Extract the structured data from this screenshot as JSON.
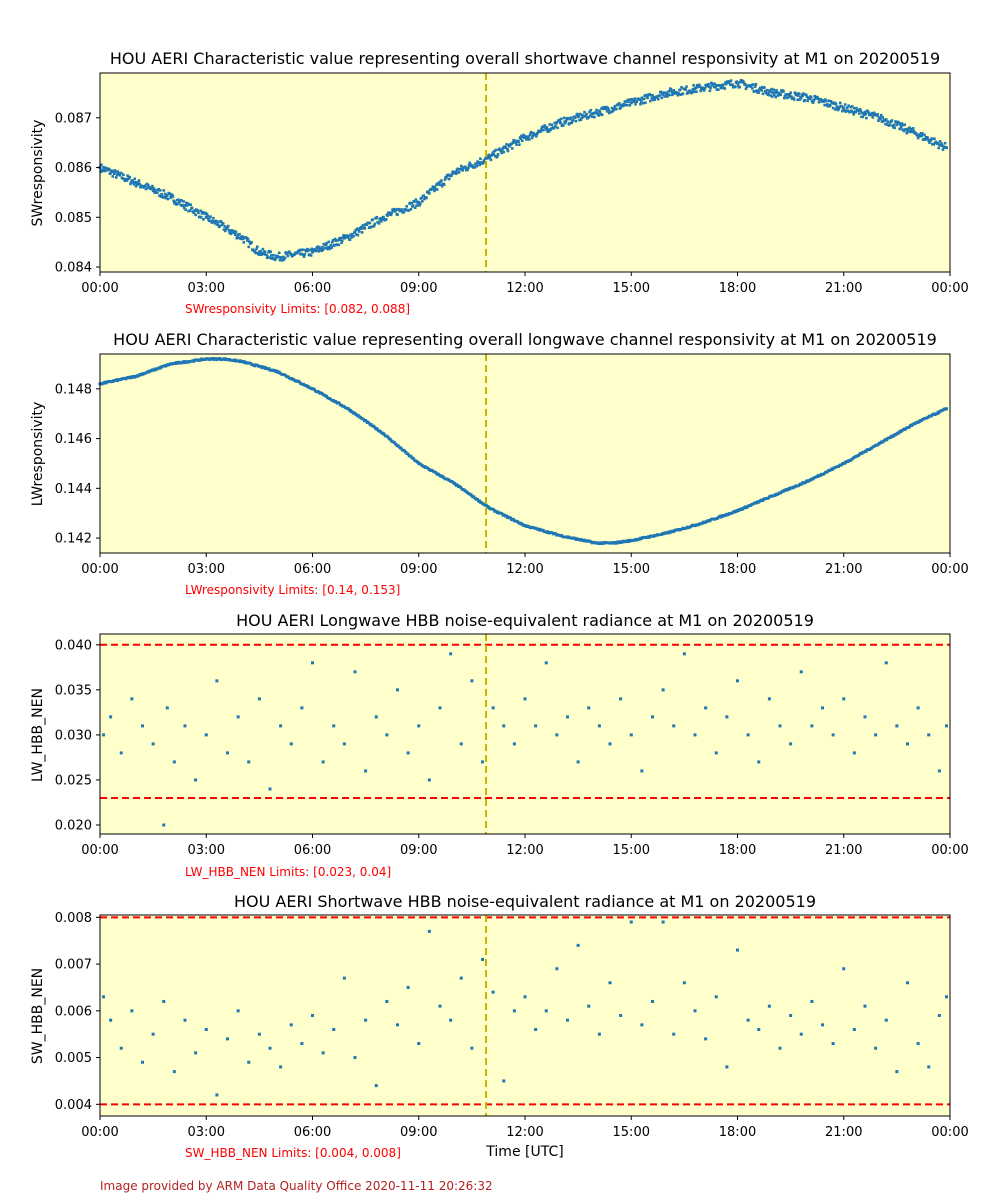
{
  "colors": {
    "plot_background": "#ffffcc",
    "series": "#1f77b4",
    "limit_line": "#ff0000",
    "current_time_line": "#c8b400",
    "limits_text": "#ff0000",
    "footer_text": "#b22222"
  },
  "x_ticks": [
    "00:00",
    "03:00",
    "06:00",
    "09:00",
    "12:00",
    "15:00",
    "18:00",
    "21:00",
    "00:00"
  ],
  "xlabel": "Time [UTC]",
  "footer": "Image provided by ARM Data Quality Office 2020-11-11 20:26:32",
  "chart_data": [
    {
      "type": "scatter",
      "title": "HOU AERI Characteristic value representing overall shortwave channel responsivity at M1 on 20200519",
      "ylabel": "SWresponsivity",
      "limits_text": "SWresponsivity Limits: [0.082, 0.088]",
      "ylim": [
        0.0839,
        0.0879
      ],
      "yticks": [
        "0.084",
        "0.085",
        "0.086",
        "0.087"
      ],
      "ytick_values": [
        0.084,
        0.085,
        0.086,
        0.087
      ],
      "xlim_hours": [
        0,
        24
      ],
      "vertical_marker_hour": 10.9,
      "limit_lines": [],
      "x_hours": [
        0,
        1,
        2,
        3,
        4,
        4.5,
        5,
        6,
        7,
        8,
        9,
        10,
        11,
        12,
        13,
        14,
        15,
        16,
        17,
        18,
        19,
        20,
        21,
        22,
        23,
        23.9
      ],
      "y": [
        0.086,
        0.0857,
        0.0854,
        0.085,
        0.0846,
        0.0843,
        0.0842,
        0.0843,
        0.0846,
        0.085,
        0.0853,
        0.0859,
        0.0862,
        0.0866,
        0.0869,
        0.0871,
        0.0873,
        0.0875,
        0.0876,
        0.0877,
        0.0875,
        0.0874,
        0.0872,
        0.087,
        0.0867,
        0.0864
      ]
    },
    {
      "type": "scatter",
      "title": "HOU AERI Characteristic value representing overall longwave channel responsivity at M1 on 20200519",
      "ylabel": "LWresponsivity",
      "limits_text": "LWresponsivity Limits: [0.14, 0.153]",
      "ylim": [
        0.1414,
        0.1494
      ],
      "yticks": [
        "0.142",
        "0.144",
        "0.146",
        "0.148"
      ],
      "ytick_values": [
        0.142,
        0.144,
        0.146,
        0.148
      ],
      "xlim_hours": [
        0,
        24
      ],
      "vertical_marker_hour": 10.9,
      "limit_lines": [],
      "x_hours": [
        0,
        1,
        2,
        3,
        3.5,
        4,
        5,
        6,
        7,
        8,
        9,
        10,
        11,
        12,
        13,
        14,
        14.5,
        15,
        16,
        17,
        18,
        19,
        20,
        21,
        22,
        23,
        23.9
      ],
      "y": [
        0.1482,
        0.1485,
        0.149,
        0.1492,
        0.1492,
        0.1491,
        0.1487,
        0.148,
        0.1472,
        0.1462,
        0.145,
        0.1442,
        0.1432,
        0.1425,
        0.1421,
        0.1418,
        0.1418,
        0.1419,
        0.1422,
        0.1426,
        0.1431,
        0.1437,
        0.1443,
        0.145,
        0.1458,
        0.1466,
        0.1472
      ]
    },
    {
      "type": "scatter",
      "title": "HOU AERI Longwave HBB noise-equivalent radiance at M1 on 20200519",
      "ylabel": "LW_HBB_NEN",
      "limits_text": "LW_HBB_NEN Limits: [0.023, 0.04]",
      "ylim": [
        0.019,
        0.0412
      ],
      "yticks": [
        "0.020",
        "0.025",
        "0.030",
        "0.035",
        "0.040"
      ],
      "ytick_values": [
        0.02,
        0.025,
        0.03,
        0.035,
        0.04
      ],
      "xlim_hours": [
        0,
        24
      ],
      "vertical_marker_hour": 10.9,
      "limit_lines": [
        0.023,
        0.04
      ],
      "x_hours": [
        0.1,
        0.3,
        0.6,
        0.9,
        1.2,
        1.5,
        1.8,
        1.9,
        2.1,
        2.4,
        2.7,
        3.0,
        3.3,
        3.6,
        3.9,
        4.2,
        4.5,
        4.8,
        5.1,
        5.4,
        5.7,
        6.0,
        6.3,
        6.6,
        6.9,
        7.2,
        7.5,
        7.8,
        8.1,
        8.4,
        8.7,
        9.0,
        9.3,
        9.6,
        9.9,
        10.2,
        10.5,
        10.8,
        11.1,
        11.4,
        11.7,
        12.0,
        12.3,
        12.6,
        12.9,
        13.2,
        13.5,
        13.8,
        14.1,
        14.4,
        14.7,
        15.0,
        15.3,
        15.6,
        15.9,
        16.2,
        16.5,
        16.8,
        17.1,
        17.4,
        17.7,
        18.0,
        18.3,
        18.6,
        18.9,
        19.2,
        19.5,
        19.8,
        20.1,
        20.4,
        20.7,
        21.0,
        21.3,
        21.6,
        21.9,
        22.2,
        22.5,
        22.8,
        23.1,
        23.4,
        23.7,
        23.9
      ],
      "y": [
        0.03,
        0.032,
        0.028,
        0.034,
        0.031,
        0.029,
        0.02,
        0.033,
        0.027,
        0.031,
        0.025,
        0.03,
        0.036,
        0.028,
        0.032,
        0.027,
        0.034,
        0.024,
        0.031,
        0.029,
        0.033,
        0.038,
        0.027,
        0.031,
        0.029,
        0.037,
        0.026,
        0.032,
        0.03,
        0.035,
        0.028,
        0.031,
        0.025,
        0.033,
        0.039,
        0.029,
        0.036,
        0.027,
        0.033,
        0.031,
        0.029,
        0.034,
        0.031,
        0.038,
        0.03,
        0.032,
        0.027,
        0.033,
        0.031,
        0.029,
        0.034,
        0.03,
        0.026,
        0.032,
        0.035,
        0.031,
        0.039,
        0.03,
        0.033,
        0.028,
        0.032,
        0.036,
        0.03,
        0.027,
        0.034,
        0.031,
        0.029,
        0.037,
        0.031,
        0.033,
        0.03,
        0.034,
        0.028,
        0.032,
        0.03,
        0.038,
        0.031,
        0.029,
        0.033,
        0.03,
        0.026,
        0.031
      ]
    },
    {
      "type": "scatter",
      "title": "HOU AERI Shortwave HBB noise-equivalent radiance at M1 on 20200519",
      "ylabel": "SW_HBB_NEN",
      "limits_text": "SW_HBB_NEN Limits: [0.004, 0.008]",
      "ylim": [
        0.00375,
        0.00805
      ],
      "yticks": [
        "0.004",
        "0.005",
        "0.006",
        "0.007",
        "0.008"
      ],
      "ytick_values": [
        0.004,
        0.005,
        0.006,
        0.007,
        0.008
      ],
      "xlim_hours": [
        0,
        24
      ],
      "vertical_marker_hour": 10.9,
      "limit_lines": [
        0.004,
        0.008
      ],
      "x_hours": [
        0.1,
        0.3,
        0.6,
        0.9,
        1.2,
        1.5,
        1.8,
        2.1,
        2.4,
        2.7,
        3.0,
        3.3,
        3.6,
        3.9,
        4.2,
        4.5,
        4.8,
        5.1,
        5.4,
        5.7,
        6.0,
        6.3,
        6.6,
        6.9,
        7.2,
        7.5,
        7.8,
        8.1,
        8.4,
        8.7,
        9.0,
        9.3,
        9.6,
        9.9,
        10.2,
        10.5,
        10.8,
        11.1,
        11.4,
        11.7,
        12.0,
        12.3,
        12.6,
        12.9,
        13.2,
        13.5,
        13.8,
        14.1,
        14.4,
        14.7,
        15.0,
        15.3,
        15.6,
        15.9,
        16.2,
        16.5,
        16.8,
        17.1,
        17.4,
        17.7,
        18.0,
        18.3,
        18.6,
        18.9,
        19.2,
        19.5,
        19.8,
        20.1,
        20.4,
        20.7,
        21.0,
        21.3,
        21.6,
        21.9,
        22.2,
        22.5,
        22.8,
        23.1,
        23.4,
        23.7,
        23.9
      ],
      "y": [
        0.0063,
        0.0058,
        0.0052,
        0.006,
        0.0049,
        0.0055,
        0.0062,
        0.0047,
        0.0058,
        0.0051,
        0.0056,
        0.0042,
        0.0054,
        0.006,
        0.0049,
        0.0055,
        0.0052,
        0.0048,
        0.0057,
        0.0053,
        0.0059,
        0.0051,
        0.0056,
        0.0067,
        0.005,
        0.0058,
        0.0044,
        0.0062,
        0.0057,
        0.0065,
        0.0053,
        0.0077,
        0.0061,
        0.0058,
        0.0067,
        0.0052,
        0.0071,
        0.0064,
        0.0045,
        0.006,
        0.0063,
        0.0056,
        0.006,
        0.0069,
        0.0058,
        0.0074,
        0.0061,
        0.0055,
        0.0066,
        0.0059,
        0.0079,
        0.0057,
        0.0062,
        0.0079,
        0.0055,
        0.0066,
        0.006,
        0.0054,
        0.0063,
        0.0048,
        0.0073,
        0.0058,
        0.0056,
        0.0061,
        0.0052,
        0.0059,
        0.0055,
        0.0062,
        0.0057,
        0.0053,
        0.0069,
        0.0056,
        0.0061,
        0.0052,
        0.0058,
        0.0047,
        0.0066,
        0.0053,
        0.0048,
        0.0059,
        0.0063
      ]
    }
  ]
}
